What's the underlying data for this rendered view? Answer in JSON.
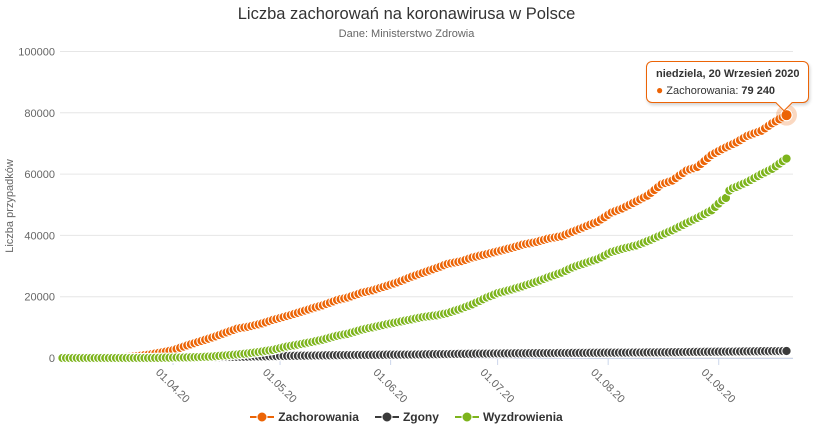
{
  "chart_data": {
    "type": "line",
    "title": "Liczba zachorowań na koronawirusa w Polsce",
    "subtitle": "Dane: Ministerstwo Zdrowia",
    "xlabel": "",
    "ylabel": "Liczba przypadków",
    "ylim": [
      0,
      100000
    ],
    "yticks": [
      0,
      20000,
      40000,
      60000,
      80000,
      100000
    ],
    "ytick_labels": [
      "0",
      "20000",
      "40000",
      "60000",
      "80000",
      "100000"
    ],
    "xticks": [
      {
        "label": "01.04.20",
        "date": "2020-04-01"
      },
      {
        "label": "01.05.20",
        "date": "2020-05-01"
      },
      {
        "label": "01.06.20",
        "date": "2020-06-01"
      },
      {
        "label": "01.07.20",
        "date": "2020-07-01"
      },
      {
        "label": "01.08.20",
        "date": "2020-08-01"
      },
      {
        "label": "01.09.20",
        "date": "2020-09-01"
      }
    ],
    "date_range": {
      "start": "2020-03-01",
      "end": "2020-09-20"
    },
    "grid": "horizontal-only",
    "legend_position": "bottom",
    "marker_style": "overlapping-daily-dots",
    "interpolation": "linear-daily",
    "colors": {
      "gridline": "#e6e6e6",
      "axis": "#ccd6eb",
      "label": "#666666",
      "title": "#333333"
    },
    "highlight": {
      "series": "Zachorowania",
      "date": "2020-09-20",
      "value": 79240
    },
    "series": [
      {
        "name": "Zachorowania",
        "color": "#ec6406",
        "points": [
          [
            "2020-03-01",
            0
          ],
          [
            "2020-03-04",
            1
          ],
          [
            "2020-03-08",
            11
          ],
          [
            "2020-03-11",
            31
          ],
          [
            "2020-03-15",
            119
          ],
          [
            "2020-03-18",
            251
          ],
          [
            "2020-03-22",
            634
          ],
          [
            "2020-03-25",
            1051
          ],
          [
            "2020-03-29",
            1862
          ],
          [
            "2020-04-01",
            2554
          ],
          [
            "2020-04-05",
            4102
          ],
          [
            "2020-04-08",
            5205
          ],
          [
            "2020-04-12",
            6674
          ],
          [
            "2020-04-15",
            7918
          ],
          [
            "2020-04-19",
            9593
          ],
          [
            "2020-04-22",
            10169
          ],
          [
            "2020-04-26",
            11273
          ],
          [
            "2020-04-29",
            12415
          ],
          [
            "2020-05-03",
            13693
          ],
          [
            "2020-05-06",
            14740
          ],
          [
            "2020-05-10",
            16206
          ],
          [
            "2020-05-13",
            17204
          ],
          [
            "2020-05-17",
            18885
          ],
          [
            "2020-05-20",
            19739
          ],
          [
            "2020-05-24",
            21326
          ],
          [
            "2020-05-27",
            22074
          ],
          [
            "2020-05-31",
            23571
          ],
          [
            "2020-06-03",
            24687
          ],
          [
            "2020-06-07",
            26561
          ],
          [
            "2020-06-10",
            27757
          ],
          [
            "2020-06-14",
            29392
          ],
          [
            "2020-06-17",
            30701
          ],
          [
            "2020-06-21",
            31620
          ],
          [
            "2020-06-24",
            32821
          ],
          [
            "2020-06-28",
            33907
          ],
          [
            "2020-07-01",
            34775
          ],
          [
            "2020-07-05",
            35950
          ],
          [
            "2020-07-08",
            36951
          ],
          [
            "2020-07-12",
            37891
          ],
          [
            "2020-07-15",
            38900
          ],
          [
            "2020-07-19",
            39746
          ],
          [
            "2020-07-22",
            41162
          ],
          [
            "2020-07-26",
            43065
          ],
          [
            "2020-07-29",
            44416
          ],
          [
            "2020-08-02",
            47469
          ],
          [
            "2020-08-05",
            48789
          ],
          [
            "2020-08-09",
            51167
          ],
          [
            "2020-08-12",
            52961
          ],
          [
            "2020-08-16",
            56684
          ],
          [
            "2020-08-19",
            57876
          ],
          [
            "2020-08-23",
            61181
          ],
          [
            "2020-08-26",
            62310
          ],
          [
            "2020-08-30",
            66239
          ],
          [
            "2020-09-02",
            68133
          ],
          [
            "2020-09-06",
            70387
          ],
          [
            "2020-09-09",
            72453
          ],
          [
            "2020-09-13",
            74152
          ],
          [
            "2020-09-16",
            76571
          ],
          [
            "2020-09-20",
            79240
          ]
        ]
      },
      {
        "name": "Zgony",
        "color": "#3b3b3b",
        "points": [
          [
            "2020-03-01",
            0
          ],
          [
            "2020-03-11",
            0
          ],
          [
            "2020-03-12",
            1
          ],
          [
            "2020-03-15",
            3
          ],
          [
            "2020-03-22",
            7
          ],
          [
            "2020-03-26",
            16
          ],
          [
            "2020-03-29",
            22
          ],
          [
            "2020-04-01",
            43
          ],
          [
            "2020-04-05",
            94
          ],
          [
            "2020-04-08",
            159
          ],
          [
            "2020-04-12",
            232
          ],
          [
            "2020-04-15",
            314
          ],
          [
            "2020-04-19",
            362
          ],
          [
            "2020-04-22",
            426
          ],
          [
            "2020-04-26",
            524
          ],
          [
            "2020-04-29",
            606
          ],
          [
            "2020-05-03",
            678
          ],
          [
            "2020-05-10",
            785
          ],
          [
            "2020-05-17",
            925
          ],
          [
            "2020-05-24",
            982
          ],
          [
            "2020-05-31",
            1061
          ],
          [
            "2020-06-07",
            1118
          ],
          [
            "2020-06-14",
            1247
          ],
          [
            "2020-06-21",
            1337
          ],
          [
            "2020-06-28",
            1438
          ],
          [
            "2020-07-05",
            1517
          ],
          [
            "2020-07-12",
            1571
          ],
          [
            "2020-07-19",
            1632
          ],
          [
            "2020-07-26",
            1676
          ],
          [
            "2020-08-02",
            1738
          ],
          [
            "2020-08-09",
            1787
          ],
          [
            "2020-08-16",
            1844
          ],
          [
            "2020-08-23",
            1951
          ],
          [
            "2020-08-30",
            2032
          ],
          [
            "2020-09-06",
            2113
          ],
          [
            "2020-09-13",
            2203
          ],
          [
            "2020-09-20",
            2293
          ]
        ]
      },
      {
        "name": "Wyzdrowienia",
        "color": "#7db41c",
        "points": [
          [
            "2020-03-01",
            0
          ],
          [
            "2020-03-14",
            0
          ],
          [
            "2020-03-17",
            1
          ],
          [
            "2020-03-22",
            2
          ],
          [
            "2020-03-26",
            7
          ],
          [
            "2020-03-29",
            56
          ],
          [
            "2020-04-01",
            134
          ],
          [
            "2020-04-05",
            191
          ],
          [
            "2020-04-08",
            284
          ],
          [
            "2020-04-12",
            487
          ],
          [
            "2020-04-15",
            774
          ],
          [
            "2020-04-19",
            1133
          ],
          [
            "2020-04-22",
            1513
          ],
          [
            "2020-04-26",
            2126
          ],
          [
            "2020-04-29",
            2655
          ],
          [
            "2020-05-03",
            3762
          ],
          [
            "2020-05-06",
            4330
          ],
          [
            "2020-05-10",
            5236
          ],
          [
            "2020-05-13",
            5986
          ],
          [
            "2020-05-17",
            7252
          ],
          [
            "2020-05-20",
            7903
          ],
          [
            "2020-05-24",
            9276
          ],
          [
            "2020-05-27",
            10020
          ],
          [
            "2020-05-31",
            11016
          ],
          [
            "2020-06-03",
            11726
          ],
          [
            "2020-06-07",
            12641
          ],
          [
            "2020-06-10",
            13343
          ],
          [
            "2020-06-14",
            13938
          ],
          [
            "2020-06-17",
            14654
          ],
          [
            "2020-06-21",
            16186
          ],
          [
            "2020-06-24",
            17525
          ],
          [
            "2020-06-28",
            19735
          ],
          [
            "2020-07-01",
            21131
          ],
          [
            "2020-07-05",
            22354
          ],
          [
            "2020-07-08",
            23395
          ],
          [
            "2020-07-12",
            24920
          ],
          [
            "2020-07-15",
            26257
          ],
          [
            "2020-07-19",
            27856
          ],
          [
            "2020-07-22",
            29537
          ],
          [
            "2020-07-26",
            31139
          ],
          [
            "2020-07-29",
            32227
          ],
          [
            "2020-08-02",
            34616
          ],
          [
            "2020-08-05",
            35642
          ],
          [
            "2020-08-09",
            36752
          ],
          [
            "2020-08-12",
            38103
          ],
          [
            "2020-08-16",
            40143
          ],
          [
            "2020-08-19",
            41674
          ],
          [
            "2020-08-23",
            44011
          ],
          [
            "2020-08-26",
            45708
          ],
          [
            "2020-08-30",
            48185
          ],
          [
            "2020-09-02",
            51487
          ],
          [
            "2020-09-03",
            52216
          ],
          [
            "2020-09-04",
            54623
          ],
          [
            "2020-09-05",
            55426
          ],
          [
            "2020-09-06",
            55856
          ],
          [
            "2020-09-09",
            57437
          ],
          [
            "2020-09-13",
            59994
          ],
          [
            "2020-09-16",
            61724
          ],
          [
            "2020-09-20",
            65061
          ]
        ]
      }
    ]
  },
  "tooltip": {
    "header": "niedziela, 20 Wrzesień 2020",
    "series_label": "Zachorowania:",
    "value": "79 240"
  },
  "legend": {
    "items": [
      {
        "label": "Zachorowania",
        "color": "#ec6406"
      },
      {
        "label": "Zgony",
        "color": "#3b3b3b"
      },
      {
        "label": "Wyzdrowienia",
        "color": "#7db41c"
      }
    ]
  }
}
